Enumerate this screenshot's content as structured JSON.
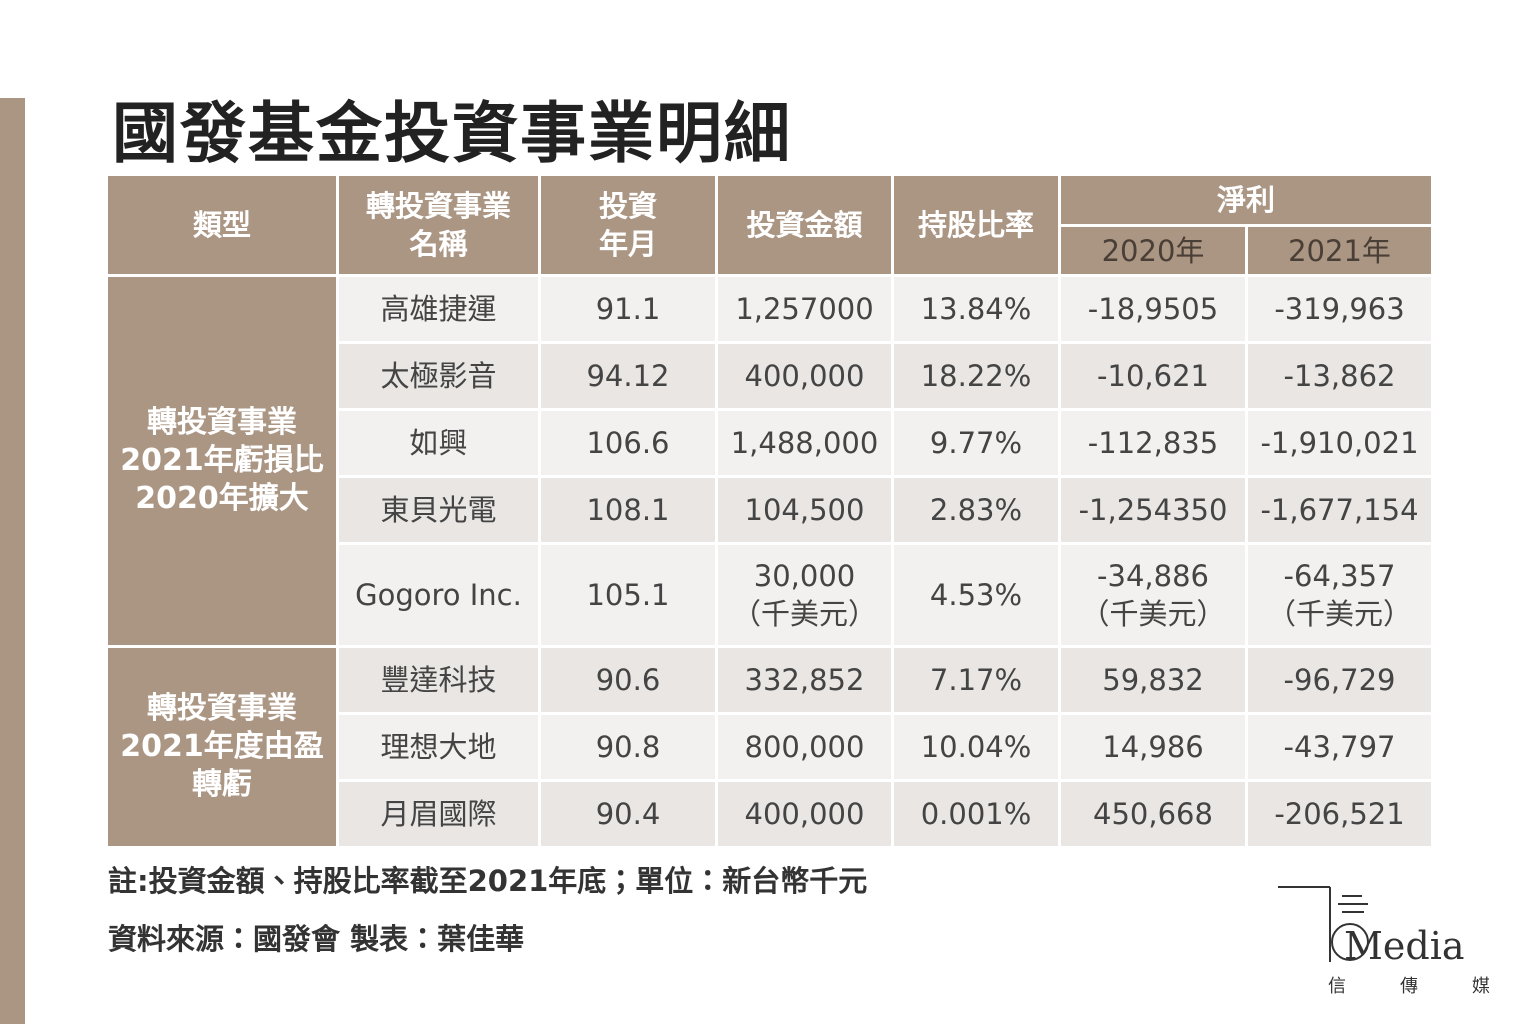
{
  "title": "國發基金投資事業明細",
  "table": {
    "headers": [
      [
        "類型"
      ],
      [
        "轉投資事業",
        "名稱"
      ],
      [
        "投資",
        "年月"
      ],
      [
        "投資金額"
      ],
      [
        "持股比率"
      ],
      [
        "淨利"
      ]
    ],
    "subheaders": [
      "2020年",
      "2021年"
    ],
    "groups": [
      {
        "type": [
          "轉投資事業",
          "2021年虧損比",
          "2020年擴大"
        ],
        "rows": [
          [
            "高雄捷運",
            "91.1",
            "1,257000",
            "13.84%",
            "-18,9505",
            "-319,963"
          ],
          [
            "太極影音",
            "94.12",
            "400,000",
            "18.22%",
            "-10,621",
            "-13,862"
          ],
          [
            "如興",
            "106.6",
            "1,488,000",
            "9.77%",
            "-112,835",
            "-1,910,021"
          ],
          [
            "東貝光電",
            "108.1",
            "104,500",
            "2.83%",
            "-1,254350",
            "-1,677,154"
          ],
          [
            "Gogoro Inc.",
            "105.1",
            [
              "30,000",
              "（千美元）"
            ],
            "4.53%",
            [
              "-34,886",
              "（千美元）"
            ],
            [
              "-64,357",
              "（千美元）"
            ]
          ]
        ]
      },
      {
        "type": [
          "轉投資事業",
          "2021年度由盈",
          "轉虧"
        ],
        "rows": [
          [
            "豐達科技",
            "90.6",
            "332,852",
            "7.17%",
            "59,832",
            "-96,729"
          ],
          [
            "理想大地",
            "90.8",
            "800,000",
            "10.04%",
            "14,986",
            "-43,797"
          ],
          [
            "月眉國際",
            "90.4",
            "400,000",
            "0.001%",
            "450,668",
            "-206,521"
          ]
        ]
      }
    ]
  },
  "notes": [
    "註:投資金額、持股比率截至2021年底；單位：新台幣千元",
    "資料來源：國發會  製表：葉佳華"
  ],
  "logo": {
    "word": "Media",
    "chars": [
      "信",
      "傳",
      "媒"
    ]
  }
}
